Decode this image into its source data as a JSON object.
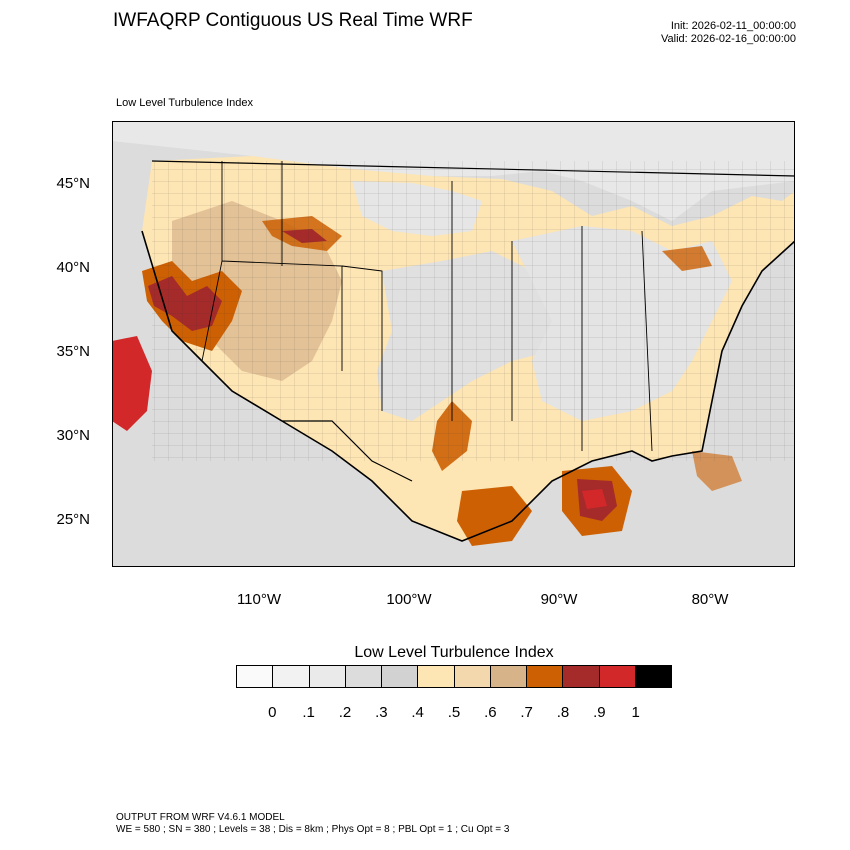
{
  "header": {
    "title": "IWFAQRP Contiguous US Real Time WRF",
    "init": "Init: 2026-02-11_00:00:00",
    "valid": "Valid: 2026-02-16_00:00:00"
  },
  "map": {
    "subtitle": "Low Level Turbulence Index",
    "lat_labels": [
      "45°N",
      "40°N",
      "35°N",
      "30°N",
      "25°N"
    ],
    "lon_labels": [
      "110°W",
      "100°W",
      "90°W",
      "80°W"
    ]
  },
  "colorbar": {
    "title": "Low Level Turbulence Index",
    "labels": [
      "0",
      ".1",
      ".2",
      ".3",
      ".4",
      ".5",
      ".6",
      ".7",
      ".8",
      ".9",
      "1"
    ],
    "colors": [
      "#fafafa",
      "#f2f2f2",
      "#eaeaea",
      "#dcdcdc",
      "#d2d2d2",
      "#fde5b4",
      "#f3d7ad",
      "#d7b38a",
      "#cd6003",
      "#a52a2a",
      "#d2282a",
      "#000000"
    ]
  },
  "footer": {
    "line1": "OUTPUT FROM WRF V4.6.1 MODEL",
    "line2": "WE = 580 ; SN = 380 ; Levels = 38 ; Dis = 8km ; Phys Opt = 8 ; PBL Opt = 1 ; Cu Opt = 3"
  }
}
